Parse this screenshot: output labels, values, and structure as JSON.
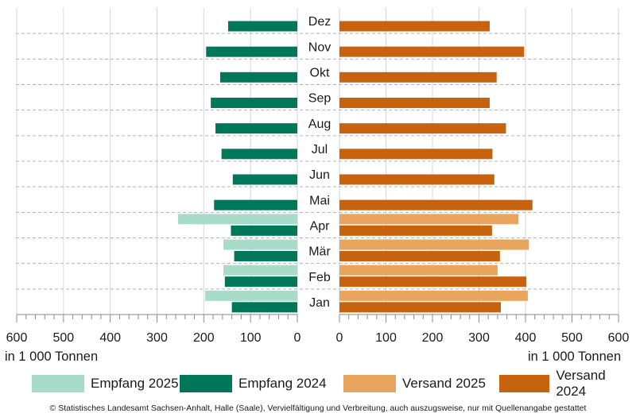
{
  "chart_data": {
    "type": "bar",
    "orientation": "horizontal",
    "layout": "butterfly",
    "categories": [
      "Dez",
      "Nov",
      "Okt",
      "Sep",
      "Aug",
      "Jul",
      "Jun",
      "Mai",
      "Apr",
      "Mär",
      "Feb",
      "Jan"
    ],
    "left_panel": {
      "xlim": [
        600,
        0
      ],
      "ticks": [
        "600",
        "500",
        "400",
        "300",
        "200",
        "100",
        "0"
      ],
      "xlabel": "in 1 000 Tonnen",
      "series": [
        {
          "name": "Empfang 2025",
          "color": "#a8dcc8",
          "values": [
            null,
            null,
            null,
            null,
            null,
            null,
            null,
            null,
            255,
            158,
            158,
            197
          ]
        },
        {
          "name": "Empfang 2024",
          "color": "#00765a",
          "values": [
            148,
            195,
            165,
            185,
            175,
            162,
            138,
            178,
            142,
            135,
            155,
            140
          ]
        }
      ]
    },
    "right_panel": {
      "xlim": [
        0,
        600
      ],
      "ticks": [
        "0",
        "100",
        "200",
        "300",
        "400",
        "500",
        "600"
      ],
      "xlabel": "in 1 000 Tonnen",
      "series": [
        {
          "name": "Versand 2025",
          "color": "#e8a55e",
          "values": [
            null,
            null,
            null,
            null,
            null,
            null,
            null,
            null,
            385,
            407,
            340,
            405
          ]
        },
        {
          "name": "Versand 2024",
          "color": "#c7620e",
          "values": [
            323,
            397,
            338,
            323,
            358,
            329,
            333,
            415,
            328,
            345,
            402,
            347
          ]
        }
      ]
    },
    "legend": [
      "Empfang 2025",
      "Empfang 2024",
      "Versand 2025",
      "Versand 2024"
    ]
  },
  "footer": "© Statistisches Landesamt Sachsen-Anhalt, Halle (Saale), Vervielfältigung und Verbreitung, auch auszugsweise, nur mit Quellenangabe gestattet"
}
